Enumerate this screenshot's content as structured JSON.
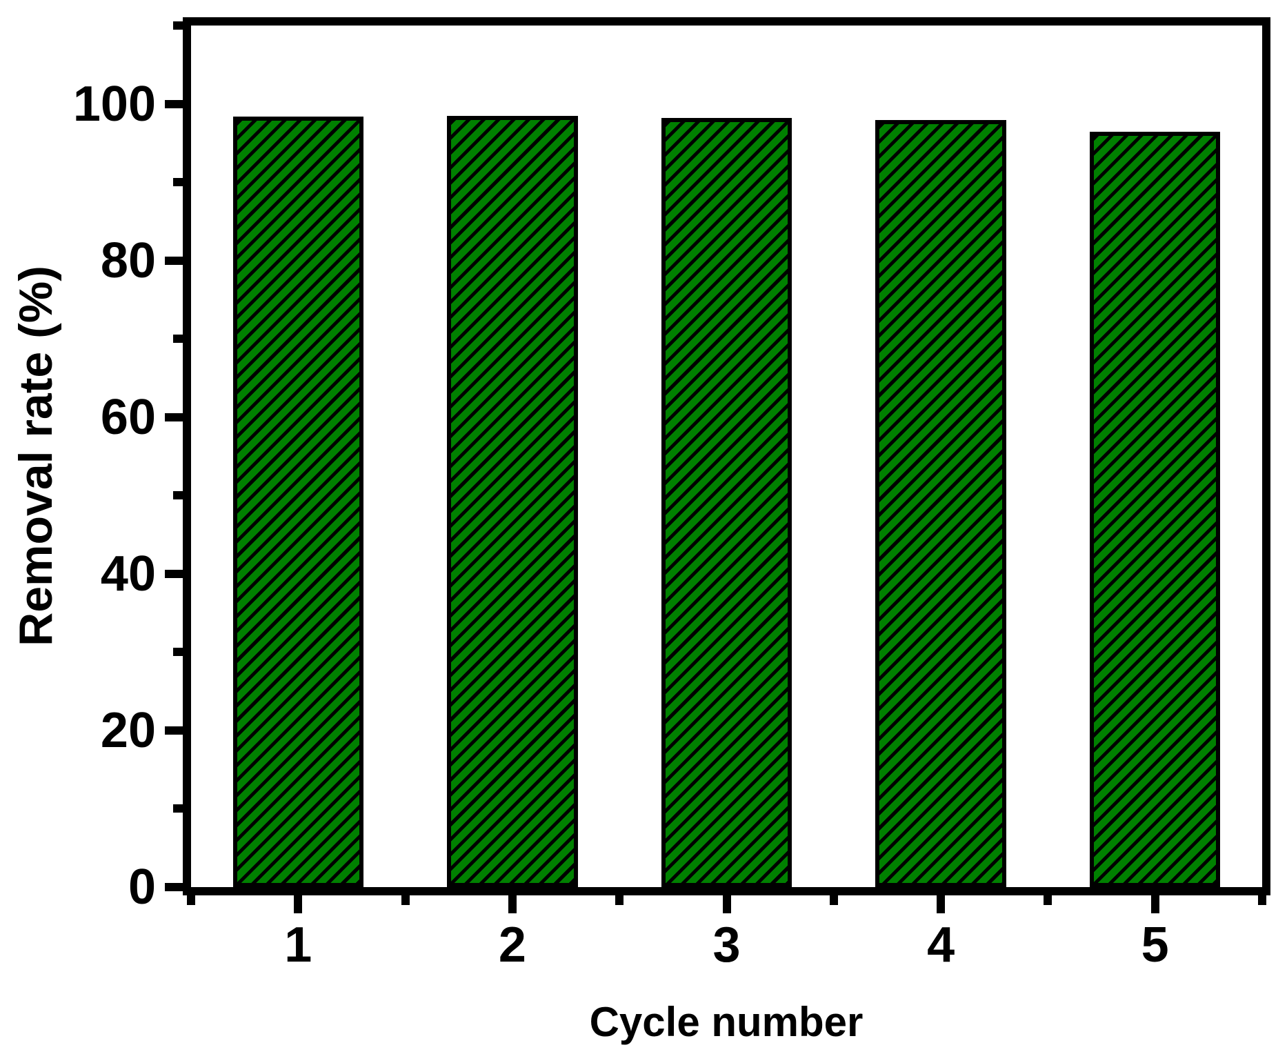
{
  "figure": {
    "background_color": "#ffffff",
    "axis_color": "#000000"
  },
  "chart_data": {
    "type": "bar",
    "title": "",
    "categories": [
      "1",
      "2",
      "3",
      "4",
      "5"
    ],
    "values": [
      98.4,
      98.5,
      98.2,
      97.9,
      96.4
    ],
    "xlabel": "Cycle number",
    "ylabel": "Removal rate (%)",
    "ylim": [
      0,
      110
    ],
    "xlim": [
      0.5,
      5.5
    ],
    "yticks_major": [
      0,
      20,
      40,
      60,
      80,
      100
    ],
    "ytick_labels": [
      "0",
      "20",
      "40",
      "60",
      "80",
      "100"
    ],
    "yticks_minor": [
      10,
      30,
      50,
      70,
      90,
      110
    ],
    "xticks_minor": [
      0.5,
      1.5,
      2.5,
      3.5,
      4.5,
      5.5
    ],
    "grid": false,
    "legend": null,
    "bar_style": {
      "fill_color": "#008000",
      "border_color": "#000000",
      "hatch_pattern": "diagonal-forward-slash",
      "hatch_color": "#000000"
    }
  }
}
